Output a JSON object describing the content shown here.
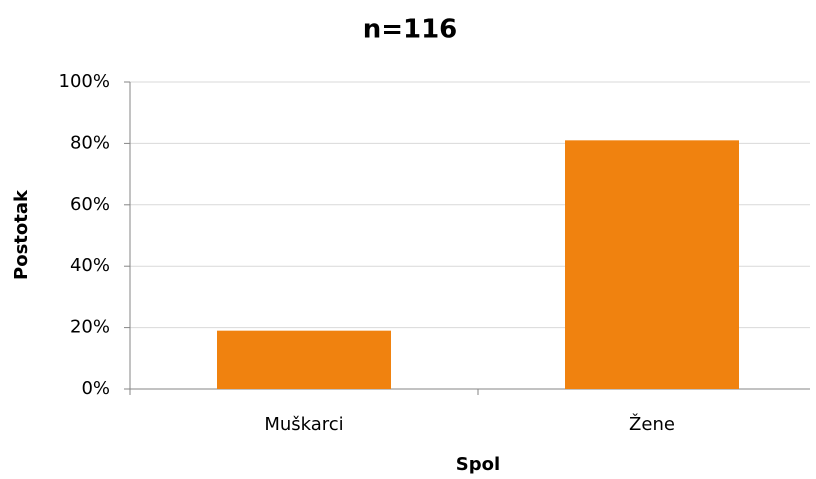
{
  "chart_data": {
    "type": "bar",
    "title": "n=116",
    "x_label": "Spol",
    "y_label": "Postotak",
    "categories": [
      "Muškarci",
      "Žene"
    ],
    "values": [
      19,
      81
    ],
    "color": "#f0820f",
    "ylim": [
      0,
      100
    ],
    "yticks": [
      {
        "value": 0,
        "label": "0%"
      },
      {
        "value": 20,
        "label": "20%"
      },
      {
        "value": 40,
        "label": "40%"
      },
      {
        "value": 60,
        "label": "60%"
      },
      {
        "value": 80,
        "label": "80%"
      },
      {
        "value": 100,
        "label": "100%"
      }
    ],
    "grid": true
  }
}
